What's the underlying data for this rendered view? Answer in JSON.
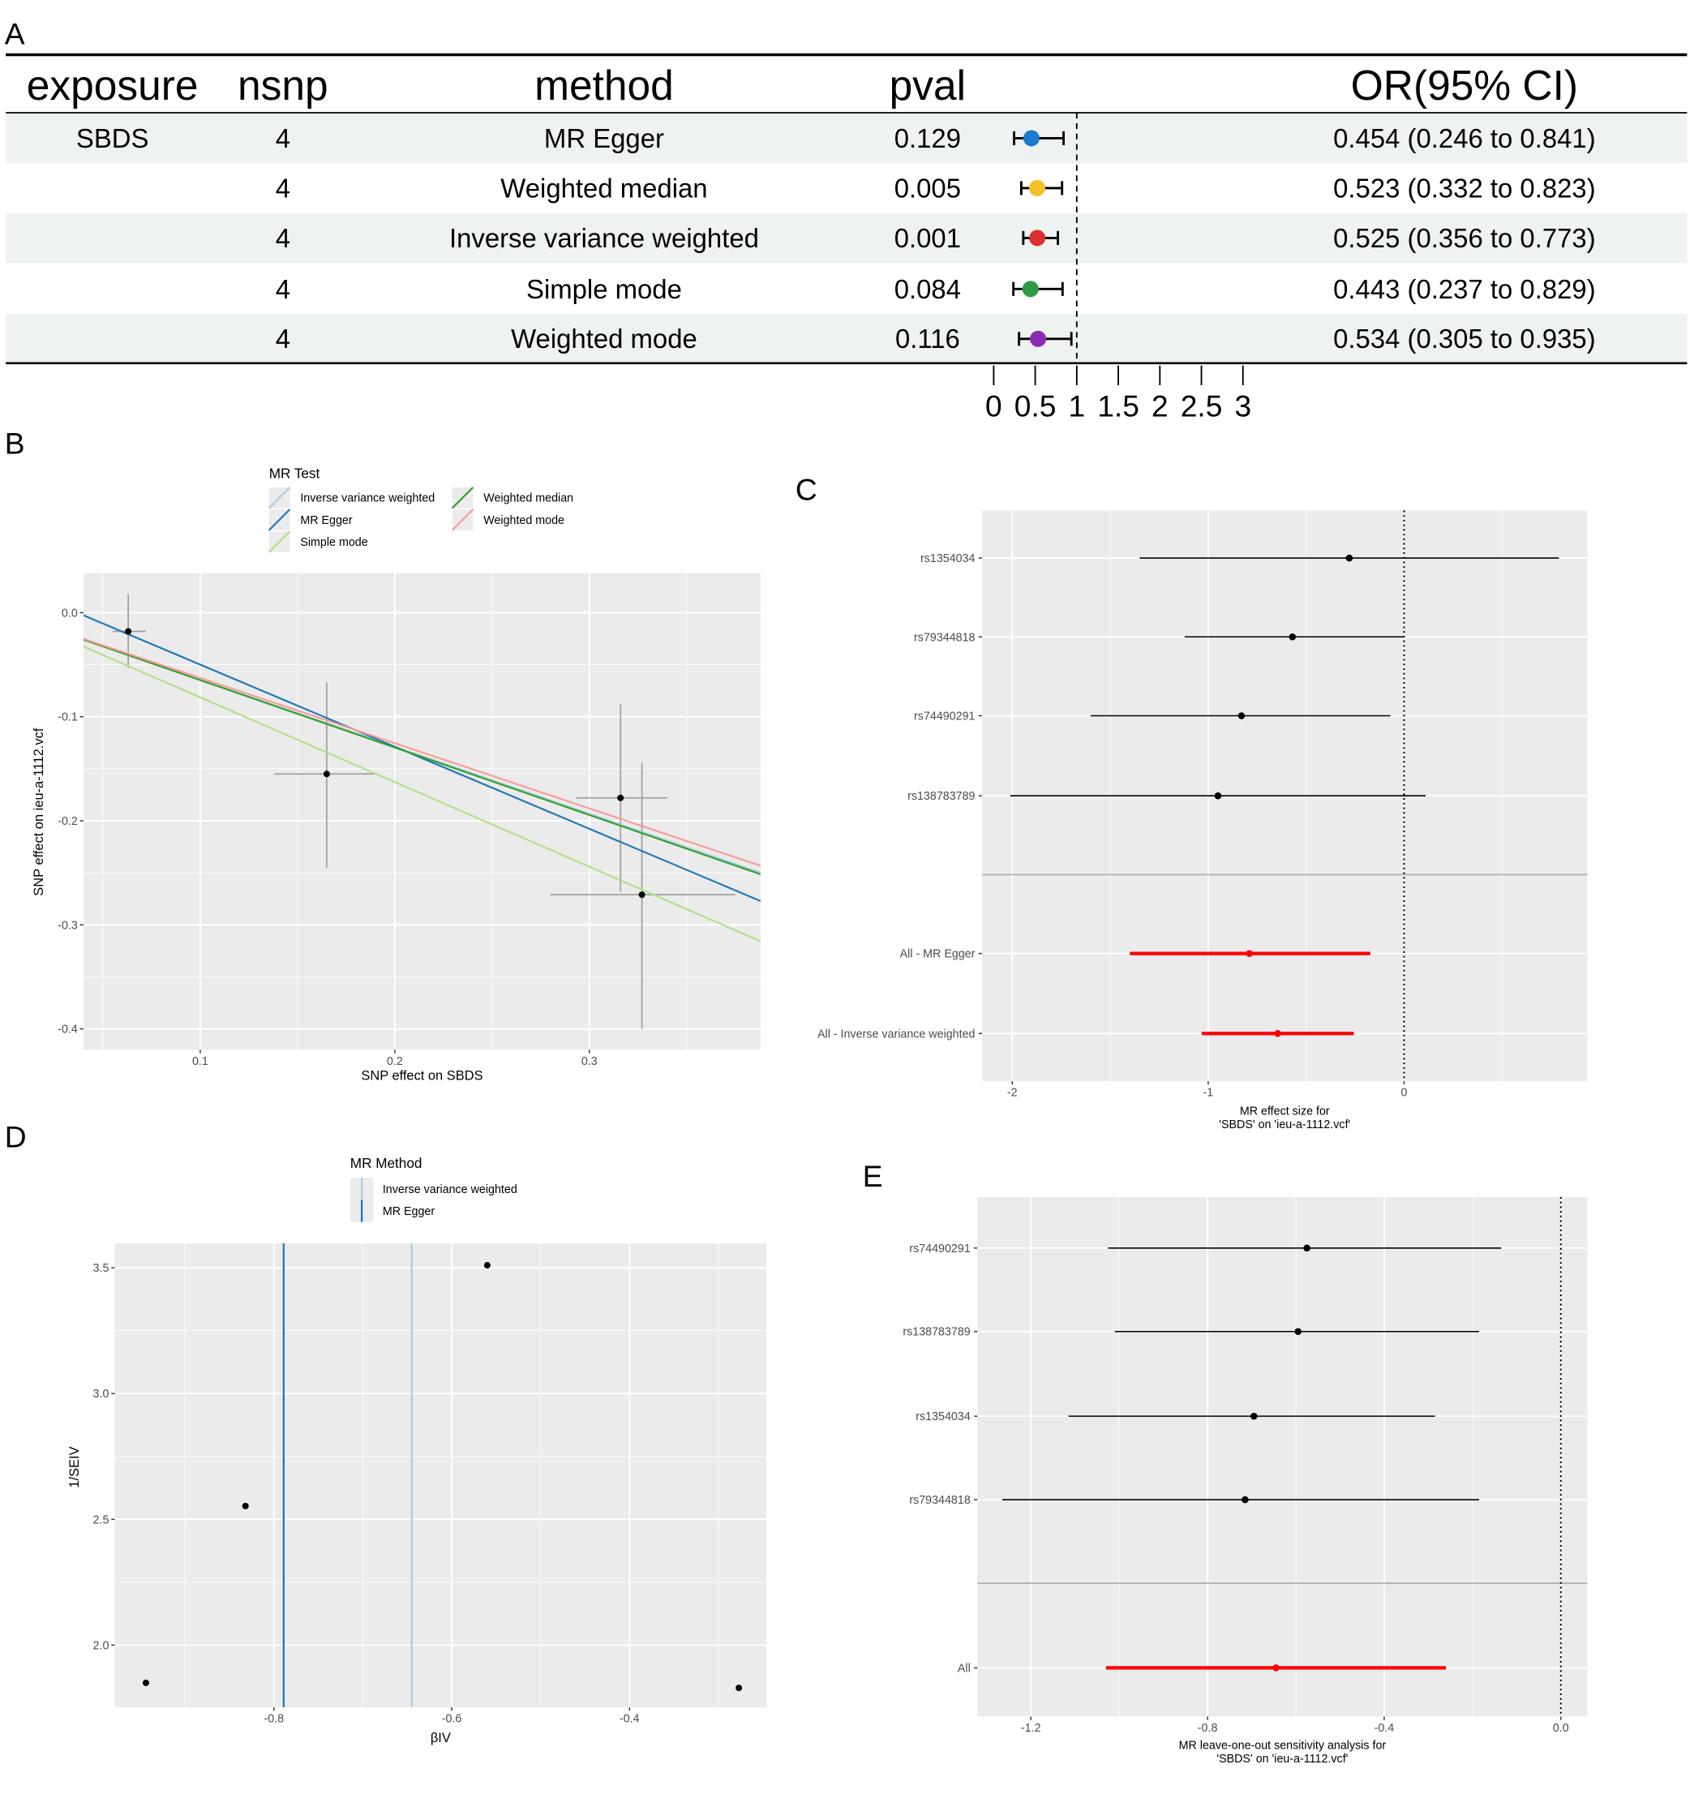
{
  "panel_labels": {
    "a": "A",
    "b": "B",
    "c": "C",
    "d": "D",
    "e": "E"
  },
  "table": {
    "headers": {
      "exposure": "exposure",
      "nsnp": "nsnp",
      "method": "method",
      "pval": "pval",
      "or": "OR(95% CI)"
    },
    "rows": [
      {
        "exposure": "SBDS",
        "nsnp": "4",
        "method": "MR Egger",
        "pval": "0.129",
        "or_text": "0.454 (0.246 to 0.841)",
        "or": 0.454,
        "lo": 0.246,
        "hi": 0.841,
        "color": "#1f78d1"
      },
      {
        "exposure": "",
        "nsnp": "4",
        "method": "Weighted median",
        "pval": "0.005",
        "or_text": "0.523 (0.332 to 0.823)",
        "or": 0.523,
        "lo": 0.332,
        "hi": 0.823,
        "color": "#f5bf2a"
      },
      {
        "exposure": "",
        "nsnp": "4",
        "method": "Inverse variance weighted",
        "pval": "0.001",
        "or_text": "0.525 (0.356 to 0.773)",
        "or": 0.525,
        "lo": 0.356,
        "hi": 0.773,
        "color": "#d9312f"
      },
      {
        "exposure": "",
        "nsnp": "4",
        "method": "Simple mode",
        "pval": "0.084",
        "or_text": "0.443 (0.237 to 0.829)",
        "or": 0.443,
        "lo": 0.237,
        "hi": 0.829,
        "color": "#2f9a45"
      },
      {
        "exposure": "",
        "nsnp": "4",
        "method": "Weighted mode",
        "pval": "0.116",
        "or_text": "0.534 (0.305 to 0.935)",
        "or": 0.534,
        "lo": 0.305,
        "hi": 0.935,
        "color": "#8a2bb0"
      }
    ],
    "axis_ticks": [
      0,
      0.5,
      1,
      1.5,
      2,
      2.5,
      3
    ],
    "axis_tick_labels": [
      "0",
      "0.5",
      "1",
      "1.5",
      "2",
      "2.5",
      "3"
    ],
    "reference_line": 1,
    "stripe_color": "#eef2f0"
  },
  "chart_data": [
    {
      "type": "scatter",
      "xlabel": "SNP effect on SBDS",
      "ylabel": "SNP effect on ieu-a-1112.vcf",
      "xlim": [
        0.04,
        0.388
      ],
      "ylim": [
        -0.42,
        0.038
      ],
      "x_ticks": [
        0.1,
        0.2,
        0.3
      ],
      "x_tick_labels": [
        "0.1",
        "0.2",
        "0.3"
      ],
      "y_ticks": [
        0.0,
        -0.1,
        -0.2,
        -0.3,
        -0.4
      ],
      "y_tick_labels": [
        "0.0",
        "-0.1",
        "-0.2",
        "-0.3",
        "-0.4"
      ],
      "grid": true,
      "legend": {
        "title": "MR Test",
        "placement": "top",
        "entries": [
          "Inverse variance weighted",
          "MR Egger",
          "Simple mode",
          "Weighted median",
          "Weighted mode"
        ]
      },
      "points": [
        {
          "x": 0.063,
          "y": -0.018,
          "x_lo": 0.055,
          "x_hi": 0.072,
          "y_lo": -0.053,
          "y_hi": 0.018
        },
        {
          "x": 0.165,
          "y": -0.155,
          "x_lo": 0.138,
          "x_hi": 0.19,
          "y_lo": -0.245,
          "y_hi": -0.067
        },
        {
          "x": 0.316,
          "y": -0.178,
          "x_lo": 0.293,
          "x_hi": 0.34,
          "y_lo": -0.268,
          "y_hi": -0.088
        },
        {
          "x": 0.327,
          "y": -0.271,
          "x_lo": 0.28,
          "x_hi": 0.375,
          "y_lo": -0.4,
          "y_hi": -0.144
        }
      ],
      "lines": [
        {
          "name": "Inverse variance weighted",
          "slope": -0.644,
          "intercept": 0,
          "color": "#a6cee3"
        },
        {
          "name": "MR Egger",
          "slope": -0.789,
          "intercept": 0.029,
          "color": "#1f78b4"
        },
        {
          "name": "Simple mode",
          "slope": -0.814,
          "intercept": 0,
          "color": "#b2df8a"
        },
        {
          "name": "Weighted median",
          "slope": -0.648,
          "intercept": 0,
          "color": "#33a02c"
        },
        {
          "name": "Weighted mode",
          "slope": -0.627,
          "intercept": 0,
          "color": "#fb9a99"
        }
      ]
    },
    {
      "type": "forest",
      "xlabel": [
        "MR effect size for",
        "'SBDS' on 'ieu-a-1112.vcf'"
      ],
      "xlim": [
        -2.154,
        0.935
      ],
      "x_ticks": [
        -2,
        -1,
        0
      ],
      "x_tick_labels": [
        "-2",
        "-1",
        "0"
      ],
      "reference_line": 0,
      "rows": [
        {
          "label": "rs1354034",
          "b": -0.28,
          "lo": -1.35,
          "hi": 0.79,
          "summary": false
        },
        {
          "label": "rs79344818",
          "b": -0.57,
          "lo": -1.12,
          "hi": 0.0,
          "summary": false
        },
        {
          "label": "rs74490291",
          "b": -0.83,
          "lo": -1.6,
          "hi": -0.07,
          "summary": false
        },
        {
          "label": "rs138783789",
          "b": -0.95,
          "lo": -2.01,
          "hi": 0.11,
          "summary": false
        },
        {
          "label": "All - MR Egger",
          "b": -0.79,
          "lo": -1.4,
          "hi": -0.173,
          "summary": true
        },
        {
          "label": "All - Inverse variance weighted",
          "b": -0.645,
          "lo": -1.033,
          "hi": -0.257,
          "summary": true
        }
      ]
    },
    {
      "type": "scatter",
      "xlabel": "βIV",
      "ylabel": "1/SEIV",
      "xlim": [
        -0.979,
        -0.246
      ],
      "ylim": [
        1.753,
        3.597
      ],
      "x_ticks": [
        -0.8,
        -0.6,
        -0.4
      ],
      "x_tick_labels": [
        "-0.8",
        "-0.6",
        "-0.4"
      ],
      "y_ticks": [
        2.0,
        2.5,
        3.0,
        3.5
      ],
      "y_tick_labels": [
        "2.0",
        "2.5",
        "3.0",
        "3.5"
      ],
      "grid": true,
      "legend": {
        "title": "MR Method",
        "placement": "top",
        "entries": [
          "Inverse variance weighted",
          "MR Egger"
        ]
      },
      "points": [
        {
          "x": -0.944,
          "y": 1.85
        },
        {
          "x": -0.832,
          "y": 2.553
        },
        {
          "x": -0.56,
          "y": 3.51
        },
        {
          "x": -0.277,
          "y": 1.83
        }
      ],
      "vlines": [
        {
          "name": "Inverse variance weighted",
          "x": -0.645,
          "color": "#a6cee3"
        },
        {
          "name": "MR Egger",
          "x": -0.789,
          "color": "#1f78b4"
        }
      ]
    },
    {
      "type": "forest",
      "xlabel": [
        "MR leave-one-out sensitivity analysis for",
        "'SBDS' on 'ieu-a-1112.vcf'"
      ],
      "xlim": [
        -1.321,
        0.06
      ],
      "x_ticks": [
        -1.2,
        -0.8,
        -0.4,
        0.0
      ],
      "x_tick_labels": [
        "-1.2",
        "-0.8",
        "-0.4",
        "0.0"
      ],
      "reference_line": 0,
      "rows": [
        {
          "label": "rs74490291",
          "b": -0.575,
          "lo": -1.025,
          "hi": -0.135,
          "summary": false
        },
        {
          "label": "rs138783789",
          "b": -0.595,
          "lo": -1.01,
          "hi": -0.185,
          "summary": false
        },
        {
          "label": "rs1354034",
          "b": -0.695,
          "lo": -1.115,
          "hi": -0.285,
          "summary": false
        },
        {
          "label": "rs79344818",
          "b": -0.715,
          "lo": -1.265,
          "hi": -0.185,
          "summary": false
        },
        {
          "label": "All",
          "b": -0.645,
          "lo": -1.03,
          "hi": -0.26,
          "summary": true
        }
      ]
    }
  ]
}
